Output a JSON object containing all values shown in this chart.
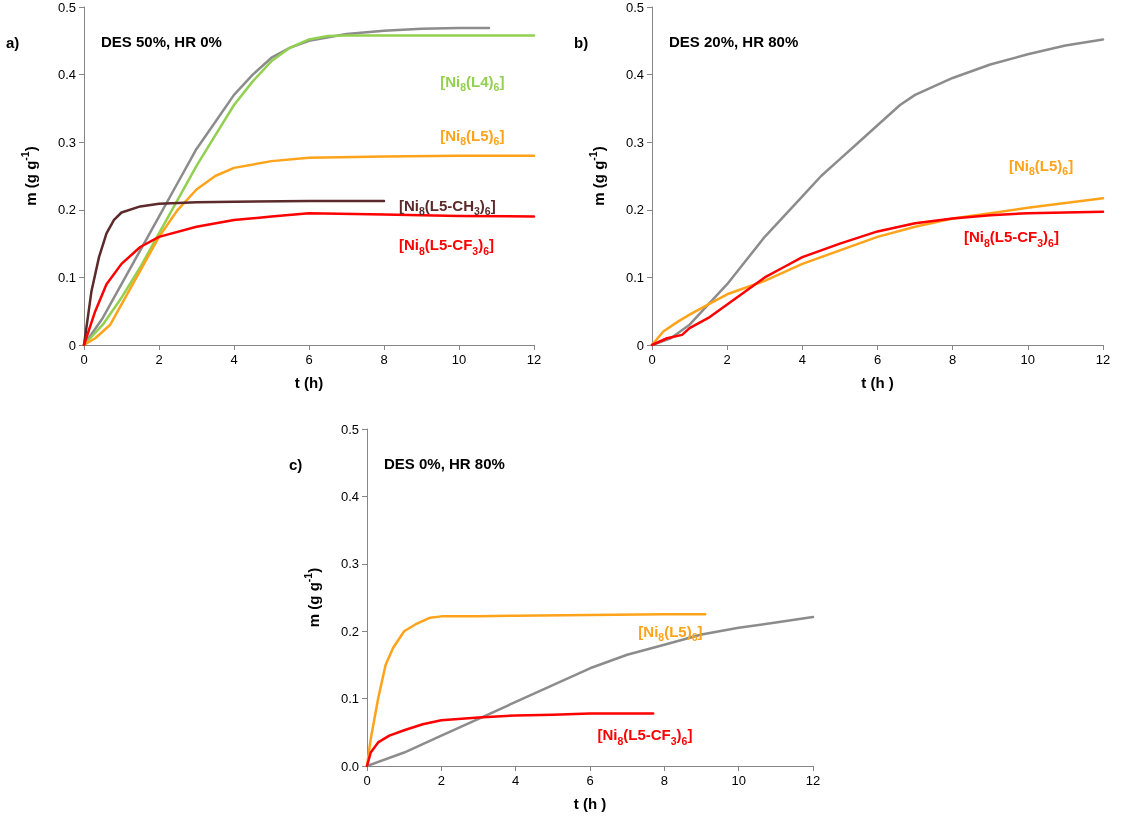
{
  "chart_data": [
    {
      "type": "line",
      "title": "DES 50%, HR 0%",
      "annotations": [
        "a)"
      ],
      "xlabel": "t (h)",
      "ylabel": "m (g g$^{-1}$)",
      "xlim": [
        0,
        12
      ],
      "xticks": [
        0,
        2,
        4,
        6,
        8,
        10,
        12
      ],
      "ylim": [
        0,
        0.5
      ],
      "yticks": [
        0,
        0.1,
        0.2,
        0.3,
        0.4,
        0.5
      ],
      "grid": false,
      "legend": false,
      "marker": "none",
      "line_style": "solid",
      "series": [
        {
          "color": "#8c8c8c",
          "x": [
            0,
            0.5,
            1,
            1.5,
            2,
            2.5,
            3,
            3.5,
            4,
            4.5,
            5,
            5.5,
            6,
            7,
            8,
            9,
            10,
            10.8
          ],
          "values": [
            0,
            0.04,
            0.09,
            0.14,
            0.19,
            0.24,
            0.29,
            0.33,
            0.37,
            0.4,
            0.425,
            0.44,
            0.45,
            0.46,
            0.465,
            0.468,
            0.469,
            0.469
          ]
        },
        {
          "name": "[Ni$_{8}$(L4)$_{6}$]",
          "color": "#92d050",
          "x": [
            0,
            0.5,
            1,
            1.5,
            2,
            2.5,
            3,
            3.5,
            4,
            4.5,
            5,
            5.5,
            6,
            6.5,
            7,
            8,
            10,
            12
          ],
          "values": [
            0,
            0.03,
            0.07,
            0.115,
            0.165,
            0.215,
            0.265,
            0.31,
            0.355,
            0.39,
            0.42,
            0.44,
            0.452,
            0.457,
            0.458,
            0.458,
            0.458,
            0.458
          ]
        },
        {
          "name": "[Ni$_{8}$(L5)$_{6}$]",
          "color": "#ffa31a",
          "x": [
            0,
            0.3,
            0.7,
            1,
            1.5,
            2,
            2.5,
            3,
            3.5,
            4,
            5,
            6,
            8,
            10,
            12
          ],
          "values": [
            0,
            0.01,
            0.03,
            0.06,
            0.11,
            0.16,
            0.2,
            0.23,
            0.25,
            0.262,
            0.272,
            0.277,
            0.279,
            0.28,
            0.28
          ]
        },
        {
          "name": "[Ni$_{8}$(L5-CH$_{3}$)$_{6}$]",
          "color": "#5c2a2a",
          "x": [
            0,
            0.2,
            0.4,
            0.6,
            0.8,
            1,
            1.5,
            2,
            3,
            4,
            6,
            8
          ],
          "values": [
            0,
            0.08,
            0.13,
            0.165,
            0.185,
            0.196,
            0.205,
            0.209,
            0.211,
            0.212,
            0.213,
            0.213
          ]
        },
        {
          "name": "[Ni$_{8}$(L5-CF$_{3}$)$_{6}$]",
          "color": "#ff0000",
          "x": [
            0,
            0.3,
            0.6,
            1,
            1.5,
            2,
            3,
            4,
            5,
            6,
            8,
            10,
            12
          ],
          "values": [
            0,
            0.05,
            0.09,
            0.12,
            0.145,
            0.16,
            0.175,
            0.185,
            0.19,
            0.195,
            0.193,
            0.191,
            0.19
          ]
        }
      ]
    },
    {
      "type": "line",
      "title": "DES 20%, HR 80%",
      "annotations": [
        "b)"
      ],
      "xlabel": "t (h )",
      "ylabel": "m (g g$^{-1}$)",
      "xlim": [
        0,
        12
      ],
      "xticks": [
        0,
        2,
        4,
        6,
        8,
        10,
        12
      ],
      "ylim": [
        0,
        0.5
      ],
      "yticks": [
        0,
        0.1,
        0.2,
        0.3,
        0.4,
        0.5
      ],
      "grid": false,
      "legend": false,
      "marker": "none",
      "line_style": "solid",
      "series": [
        {
          "color": "#8c8c8c",
          "x": [
            0,
            0.5,
            1,
            1.5,
            2,
            2.5,
            3,
            3.5,
            4,
            4.5,
            5,
            5.5,
            6,
            6.6,
            7,
            8,
            9,
            10,
            11,
            12
          ],
          "values": [
            0,
            0.01,
            0.03,
            0.06,
            0.09,
            0.125,
            0.16,
            0.19,
            0.22,
            0.25,
            0.275,
            0.3,
            0.325,
            0.355,
            0.37,
            0.395,
            0.415,
            0.43,
            0.443,
            0.452
          ]
        },
        {
          "name": "[Ni$_{8}$(L5)$_{6}$]",
          "color": "#ffa31a",
          "x": [
            0,
            0.3,
            0.7,
            1,
            1.5,
            2,
            3,
            4,
            5,
            6,
            7,
            8,
            9,
            10,
            11,
            12
          ],
          "values": [
            0,
            0.02,
            0.035,
            0.045,
            0.06,
            0.075,
            0.095,
            0.12,
            0.14,
            0.16,
            0.175,
            0.187,
            0.195,
            0.203,
            0.21,
            0.217
          ]
        },
        {
          "name": "[Ni$_{8}$(L5-CF$_{3}$)$_{6}$]",
          "color": "#ff0000",
          "x": [
            0,
            0.4,
            0.8,
            1,
            1.5,
            2,
            2.5,
            3,
            3.5,
            4,
            5,
            6,
            7,
            8,
            9,
            10,
            11,
            12
          ],
          "values": [
            0,
            0.01,
            0.015,
            0.025,
            0.04,
            0.06,
            0.08,
            0.1,
            0.115,
            0.13,
            0.15,
            0.168,
            0.18,
            0.187,
            0.192,
            0.195,
            0.196,
            0.197
          ]
        }
      ]
    },
    {
      "type": "line",
      "title": "DES 0%, HR 80%",
      "annotations": [
        "c)"
      ],
      "xlabel": "t (h )",
      "ylabel": "m (g g$^{-1}$)",
      "xlim": [
        0,
        12
      ],
      "xticks": [
        0,
        2,
        4,
        6,
        8,
        10,
        12
      ],
      "ylim": [
        0,
        0.5
      ],
      "yticks": [
        {
          "value": 0,
          "label": "0.0"
        },
        0.1,
        0.2,
        0.3,
        0.4,
        0.5
      ],
      "grid": false,
      "legend": false,
      "marker": "none",
      "line_style": "solid",
      "series": [
        {
          "name": "[Ni$_{8}$(L5)$_{6}$]",
          "color": "#ffa31a",
          "x": [
            0,
            0.1,
            0.3,
            0.5,
            0.7,
            1,
            1.3,
            1.7,
            2,
            3,
            4,
            6,
            8,
            9.1
          ],
          "values": [
            0,
            0.04,
            0.1,
            0.15,
            0.175,
            0.2,
            0.21,
            0.22,
            0.222,
            0.222,
            0.223,
            0.224,
            0.225,
            0.225
          ]
        },
        {
          "color": "#8c8c8c",
          "x": [
            0,
            1,
            2,
            3,
            4,
            5,
            6,
            7,
            8,
            9,
            10,
            11,
            12
          ],
          "values": [
            0,
            0.02,
            0.045,
            0.07,
            0.095,
            0.12,
            0.145,
            0.165,
            0.18,
            0.195,
            0.205,
            0.213,
            0.221
          ]
        },
        {
          "name": "[Ni$_{8}$(L5-CF$_{3}$)$_{6}$]",
          "color": "#ff0000",
          "x": [
            0,
            0.1,
            0.3,
            0.6,
            1,
            1.5,
            2,
            3,
            4,
            5,
            6,
            7,
            7.7
          ],
          "values": [
            0,
            0.02,
            0.035,
            0.045,
            0.053,
            0.062,
            0.068,
            0.072,
            0.075,
            0.076,
            0.078,
            0.078,
            0.078
          ]
        }
      ]
    }
  ]
}
